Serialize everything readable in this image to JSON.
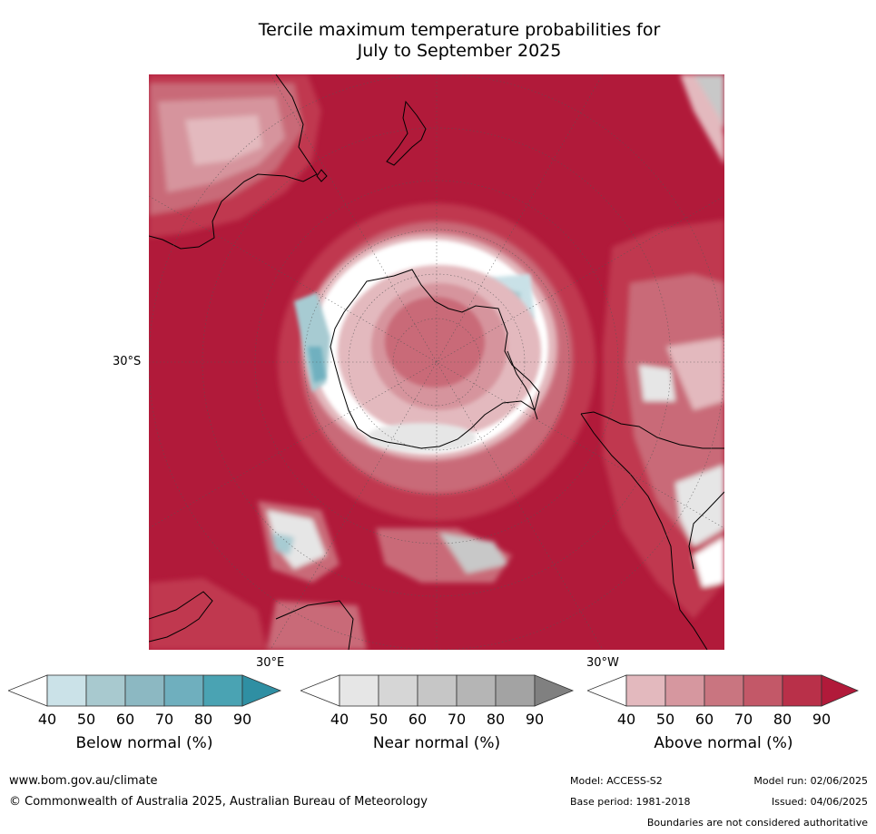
{
  "title": {
    "line1": "Tercile maximum temperature probabilities for",
    "line2": "July to September 2025"
  },
  "map": {
    "projection": "south-polar-stereographic",
    "latitude_label": "30°S",
    "longitude_labels": [
      "30°E",
      "30°W"
    ],
    "colors": {
      "above_90": "#b11a3a",
      "above_80": "#c0394f",
      "above_70": "#c96a78",
      "above_60": "#d6949d",
      "above_50": "#e3b9be",
      "below_light": "#c9e1e7",
      "below_mid": "#a7cbd2",
      "below_dark": "#6fb0bf",
      "near_light": "#e6e6e6",
      "near_mid": "#c8c8c8",
      "near_dark": "#a3a3a3",
      "coast": "#000000",
      "graticule": "#555555"
    }
  },
  "colorbars": [
    {
      "label": "Below normal (%)",
      "ticks": [
        "40",
        "50",
        "60",
        "70",
        "80",
        "90"
      ],
      "colors": [
        "#ffffff",
        "#cbe2e8",
        "#a8c9cf",
        "#8cb8c2",
        "#6fafbe",
        "#4aa3b3",
        "#2f8fa3"
      ]
    },
    {
      "label": "Near normal (%)",
      "ticks": [
        "40",
        "50",
        "60",
        "70",
        "80",
        "90"
      ],
      "colors": [
        "#ffffff",
        "#e6e6e6",
        "#d6d6d6",
        "#c6c6c6",
        "#b5b5b5",
        "#a3a3a3",
        "#808080"
      ]
    },
    {
      "label": "Above normal (%)",
      "ticks": [
        "40",
        "50",
        "60",
        "70",
        "80",
        "90"
      ],
      "colors": [
        "#ffffff",
        "#e3b9be",
        "#d6979f",
        "#c97580",
        "#c35868",
        "#b93049",
        "#b11a3a"
      ]
    }
  ],
  "footer": {
    "website": "www.bom.gov.au/climate",
    "copyright": "© Commonwealth of Australia 2025, Australian Bureau of Meteorology",
    "model": "Model: ACCESS-S2",
    "model_run": "Model run: 02/06/2025",
    "base_period": "Base period: 1981-2018",
    "issued": "Issued: 04/06/2025",
    "boundaries_note": "Boundaries are not considered authoritative"
  }
}
